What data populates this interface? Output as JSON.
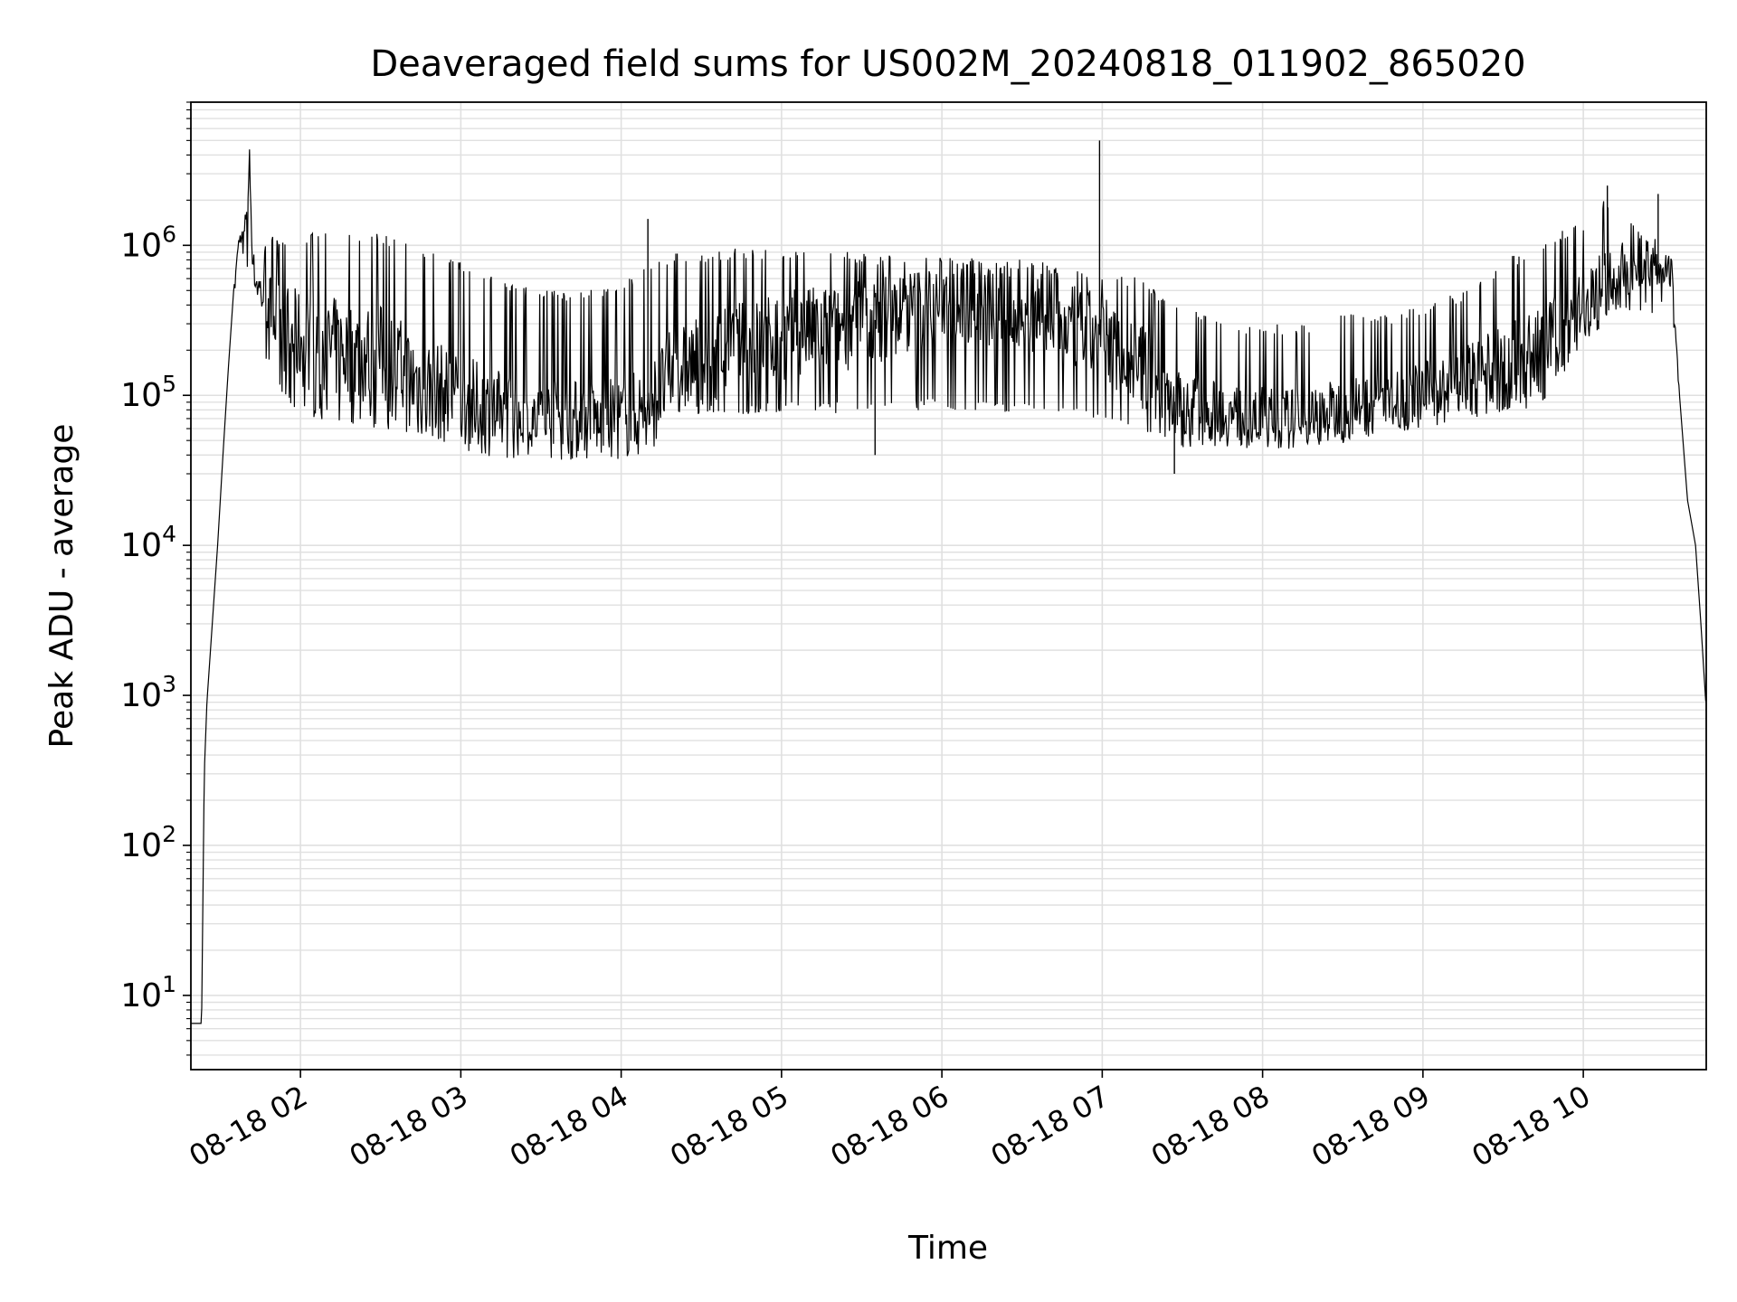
{
  "chart_data": {
    "type": "line",
    "title": "Deaveraged field sums for US002M_20240818_011902_865020",
    "xlabel": "Time",
    "ylabel": "Peak ADU - average",
    "yscale": "log",
    "ylim": [
      3.2,
      9000000
    ],
    "xlim": [
      "2024-08-18 01:19",
      "2024-08-18 10:46"
    ],
    "grid": true,
    "line_color": "#000000",
    "grid_color": "#e0e0e0",
    "x_ticks": [
      {
        "value": "2024-08-18 02:00",
        "label": "08-18 02"
      },
      {
        "value": "2024-08-18 03:00",
        "label": "08-18 03"
      },
      {
        "value": "2024-08-18 04:00",
        "label": "08-18 04"
      },
      {
        "value": "2024-08-18 05:00",
        "label": "08-18 05"
      },
      {
        "value": "2024-08-18 06:00",
        "label": "08-18 06"
      },
      {
        "value": "2024-08-18 07:00",
        "label": "08-18 07"
      },
      {
        "value": "2024-08-18 08:00",
        "label": "08-18 08"
      },
      {
        "value": "2024-08-18 09:00",
        "label": "08-18 09"
      },
      {
        "value": "2024-08-18 10:00",
        "label": "08-18 10"
      }
    ],
    "y_ticks": [
      {
        "value": 10,
        "base": "10",
        "exp": "1"
      },
      {
        "value": 100,
        "base": "10",
        "exp": "2"
      },
      {
        "value": 1000,
        "base": "10",
        "exp": "3"
      },
      {
        "value": 10000,
        "base": "10",
        "exp": "4"
      },
      {
        "value": 100000,
        "base": "10",
        "exp": "5"
      },
      {
        "value": 1000000,
        "base": "10",
        "exp": "6"
      }
    ],
    "series": [
      {
        "x": [
          "2024-08-18 01:19",
          "2024-08-18 01:22",
          "2024-08-18 01:23",
          "2024-08-18 01:24",
          "2024-08-18 01:25",
          "2024-08-18 01:27",
          "2024-08-18 01:29",
          "2024-08-18 01:31",
          "2024-08-18 01:33",
          "2024-08-18 01:35",
          "2024-08-18 01:37",
          "2024-08-18 01:39",
          "2024-08-18 01:41",
          "2024-08-18 01:42",
          "2024-08-18 01:43",
          "2024-08-18 01:45",
          "2024-08-18 01:48",
          "2024-08-18 01:52",
          "2024-08-18 01:57",
          "2024-08-18 02:05",
          "2024-08-18 02:15",
          "2024-08-18 02:30",
          "2024-08-18 02:45",
          "2024-08-18 03:00",
          "2024-08-18 03:15",
          "2024-08-18 03:30",
          "2024-08-18 03:45",
          "2024-08-18 04:00",
          "2024-08-18 04:10",
          "2024-08-18 04:20",
          "2024-08-18 04:40",
          "2024-08-18 05:00",
          "2024-08-18 05:30",
          "2024-08-18 05:55",
          "2024-08-18 06:00",
          "2024-08-18 06:30",
          "2024-08-18 07:00",
          "2024-08-18 07:15",
          "2024-08-18 07:30",
          "2024-08-18 07:45",
          "2024-08-18 08:00",
          "2024-08-18 08:15",
          "2024-08-18 08:30",
          "2024-08-18 08:45",
          "2024-08-18 09:00",
          "2024-08-18 09:15",
          "2024-08-18 09:30",
          "2024-08-18 09:45",
          "2024-08-18 10:00",
          "2024-08-18 10:08",
          "2024-08-18 10:15",
          "2024-08-18 10:25",
          "2024-08-18 10:33",
          "2024-08-18 10:36",
          "2024-08-18 10:39",
          "2024-08-18 10:42",
          "2024-08-18 10:44",
          "2024-08-18 10:46"
        ],
        "y": [
          6.5,
          6.5,
          6.5,
          300,
          900,
          3000,
          10000,
          40000,
          150000,
          500000,
          1100000,
          1200000,
          3200000,
          900000,
          600000,
          500000,
          400000,
          300000,
          250000,
          220000,
          200000,
          180000,
          120000,
          90000,
          75000,
          70000,
          68000,
          70000,
          80000,
          150000,
          200000,
          250000,
          300000,
          400000,
          450000,
          350000,
          250000,
          150000,
          80000,
          75000,
          70000,
          70000,
          80000,
          90000,
          100000,
          120000,
          150000,
          200000,
          400000,
          600000,
          700000,
          650000,
          650000,
          100000,
          20000,
          10000,
          3000,
          800
        ],
        "band_high": [
          6.5,
          6.5,
          6.5,
          300,
          900,
          3000,
          10000,
          40000,
          150000,
          500000,
          1100000,
          1200000,
          3200000,
          1000000,
          1000000,
          1000000,
          1100000,
          1200000,
          1200000,
          1200000,
          1200000,
          1200000,
          1000000,
          800000,
          600000,
          500000,
          500000,
          550000,
          800000,
          900000,
          950000,
          950000,
          900000,
          850000,
          850000,
          800000,
          700000,
          600000,
          400000,
          300000,
          300000,
          300000,
          350000,
          350000,
          400000,
          500000,
          800000,
          1100000,
          1500000,
          2000000,
          1500000,
          1200000,
          900000,
          100000,
          20000,
          10000,
          3000,
          800
        ],
        "band_low": [
          6.5,
          6.5,
          6.5,
          300,
          900,
          3000,
          10000,
          40000,
          150000,
          500000,
          800000,
          800000,
          600000,
          500000,
          400000,
          250000,
          150000,
          100000,
          80000,
          70000,
          65000,
          60000,
          55000,
          55000,
          50000,
          50000,
          50000,
          55000,
          60000,
          70000,
          75000,
          75000,
          75000,
          80000,
          80000,
          75000,
          65000,
          55000,
          50000,
          50000,
          50000,
          55000,
          55000,
          60000,
          65000,
          65000,
          70000,
          90000,
          200000,
          300000,
          350000,
          350000,
          350000,
          100000,
          20000,
          10000,
          3000,
          800
        ],
        "spikes": [
          {
            "x": "2024-08-18 01:41",
            "y": 3200000
          },
          {
            "x": "2024-08-18 04:10",
            "y": 1500000
          },
          {
            "x": "2024-08-18 06:59",
            "y": 5000000
          },
          {
            "x": "2024-08-18 10:09",
            "y": 2500000
          },
          {
            "x": "2024-08-18 10:28",
            "y": 2200000
          },
          {
            "x": "2024-08-18 07:27",
            "y": 30000
          },
          {
            "x": "2024-08-18 05:35",
            "y": 40000
          }
        ]
      }
    ]
  }
}
